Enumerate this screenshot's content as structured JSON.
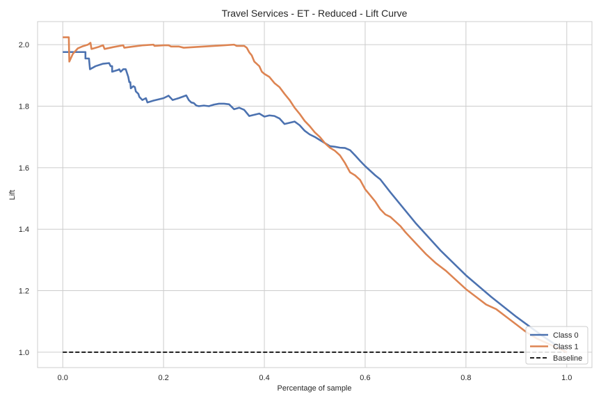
{
  "chart_data": {
    "type": "line",
    "title": "Travel Services - ET - Reduced - Lift Curve",
    "xlabel": "Percentage of sample",
    "ylabel": "Lift",
    "xlim": [
      -0.05,
      1.05
    ],
    "ylim": [
      0.95,
      2.075
    ],
    "xticks": [
      "0.0",
      "0.2",
      "0.4",
      "0.6",
      "0.8",
      "1.0"
    ],
    "yticks": [
      "1.0",
      "1.2",
      "1.4",
      "1.6",
      "1.8",
      "2.0"
    ],
    "grid": true,
    "legend_position": "lower-right",
    "series": [
      {
        "name": "Class 0",
        "color": "#4c72b0",
        "style": "solid",
        "points": [
          [
            0.0,
            1.976
          ],
          [
            0.045,
            1.976
          ],
          [
            0.045,
            1.955
          ],
          [
            0.052,
            1.955
          ],
          [
            0.054,
            1.92
          ],
          [
            0.065,
            1.93
          ],
          [
            0.08,
            1.938
          ],
          [
            0.092,
            1.94
          ],
          [
            0.095,
            1.93
          ],
          [
            0.098,
            1.93
          ],
          [
            0.098,
            1.912
          ],
          [
            0.11,
            1.918
          ],
          [
            0.112,
            1.92
          ],
          [
            0.115,
            1.912
          ],
          [
            0.12,
            1.92
          ],
          [
            0.125,
            1.92
          ],
          [
            0.13,
            1.895
          ],
          [
            0.132,
            1.878
          ],
          [
            0.134,
            1.878
          ],
          [
            0.135,
            1.858
          ],
          [
            0.14,
            1.865
          ],
          [
            0.143,
            1.862
          ],
          [
            0.145,
            1.848
          ],
          [
            0.15,
            1.84
          ],
          [
            0.152,
            1.83
          ],
          [
            0.158,
            1.82
          ],
          [
            0.165,
            1.826
          ],
          [
            0.168,
            1.812
          ],
          [
            0.18,
            1.818
          ],
          [
            0.19,
            1.822
          ],
          [
            0.2,
            1.826
          ],
          [
            0.21,
            1.834
          ],
          [
            0.218,
            1.82
          ],
          [
            0.23,
            1.826
          ],
          [
            0.24,
            1.832
          ],
          [
            0.245,
            1.835
          ],
          [
            0.25,
            1.82
          ],
          [
            0.255,
            1.812
          ],
          [
            0.26,
            1.81
          ],
          [
            0.265,
            1.802
          ],
          [
            0.27,
            1.8
          ],
          [
            0.28,
            1.802
          ],
          [
            0.29,
            1.8
          ],
          [
            0.3,
            1.805
          ],
          [
            0.31,
            1.808
          ],
          [
            0.32,
            1.808
          ],
          [
            0.33,
            1.806
          ],
          [
            0.34,
            1.79
          ],
          [
            0.35,
            1.795
          ],
          [
            0.36,
            1.788
          ],
          [
            0.37,
            1.768
          ],
          [
            0.38,
            1.772
          ],
          [
            0.39,
            1.776
          ],
          [
            0.4,
            1.766
          ],
          [
            0.41,
            1.77
          ],
          [
            0.42,
            1.768
          ],
          [
            0.43,
            1.76
          ],
          [
            0.44,
            1.742
          ],
          [
            0.45,
            1.746
          ],
          [
            0.46,
            1.75
          ],
          [
            0.47,
            1.738
          ],
          [
            0.48,
            1.72
          ],
          [
            0.49,
            1.708
          ],
          [
            0.5,
            1.7
          ],
          [
            0.51,
            1.69
          ],
          [
            0.52,
            1.68
          ],
          [
            0.53,
            1.67
          ],
          [
            0.54,
            1.668
          ],
          [
            0.55,
            1.665
          ],
          [
            0.56,
            1.664
          ],
          [
            0.57,
            1.657
          ],
          [
            0.58,
            1.64
          ],
          [
            0.59,
            1.622
          ],
          [
            0.6,
            1.605
          ],
          [
            0.61,
            1.59
          ],
          [
            0.62,
            1.575
          ],
          [
            0.63,
            1.562
          ],
          [
            0.65,
            1.52
          ],
          [
            0.7,
            1.42
          ],
          [
            0.75,
            1.33
          ],
          [
            0.8,
            1.25
          ],
          [
            0.85,
            1.18
          ],
          [
            0.9,
            1.115
          ],
          [
            0.95,
            1.055
          ],
          [
            1.0,
            1.0
          ]
        ]
      },
      {
        "name": "Class 1",
        "color": "#dd8452",
        "style": "solid",
        "points": [
          [
            0.0,
            2.024
          ],
          [
            0.012,
            2.024
          ],
          [
            0.013,
            1.945
          ],
          [
            0.02,
            1.97
          ],
          [
            0.03,
            1.988
          ],
          [
            0.04,
            1.995
          ],
          [
            0.05,
            2.0
          ],
          [
            0.055,
            2.006
          ],
          [
            0.057,
            1.986
          ],
          [
            0.07,
            1.992
          ],
          [
            0.08,
            1.998
          ],
          [
            0.083,
            1.986
          ],
          [
            0.1,
            1.992
          ],
          [
            0.12,
            1.998
          ],
          [
            0.122,
            1.99
          ],
          [
            0.14,
            1.994
          ],
          [
            0.16,
            1.998
          ],
          [
            0.18,
            2.0
          ],
          [
            0.182,
            1.996
          ],
          [
            0.2,
            1.998
          ],
          [
            0.21,
            1.998
          ],
          [
            0.215,
            1.994
          ],
          [
            0.23,
            1.994
          ],
          [
            0.24,
            1.99
          ],
          [
            0.26,
            1.992
          ],
          [
            0.28,
            1.994
          ],
          [
            0.3,
            1.996
          ],
          [
            0.32,
            1.998
          ],
          [
            0.34,
            2.0
          ],
          [
            0.345,
            1.996
          ],
          [
            0.36,
            1.996
          ],
          [
            0.365,
            1.99
          ],
          [
            0.37,
            1.975
          ],
          [
            0.375,
            1.965
          ],
          [
            0.38,
            1.945
          ],
          [
            0.39,
            1.93
          ],
          [
            0.395,
            1.912
          ],
          [
            0.4,
            1.905
          ],
          [
            0.41,
            1.895
          ],
          [
            0.42,
            1.875
          ],
          [
            0.43,
            1.862
          ],
          [
            0.44,
            1.84
          ],
          [
            0.45,
            1.82
          ],
          [
            0.46,
            1.795
          ],
          [
            0.47,
            1.775
          ],
          [
            0.48,
            1.752
          ],
          [
            0.49,
            1.735
          ],
          [
            0.5,
            1.715
          ],
          [
            0.51,
            1.7
          ],
          [
            0.52,
            1.68
          ],
          [
            0.53,
            1.665
          ],
          [
            0.54,
            1.655
          ],
          [
            0.55,
            1.64
          ],
          [
            0.56,
            1.615
          ],
          [
            0.57,
            1.585
          ],
          [
            0.58,
            1.575
          ],
          [
            0.59,
            1.56
          ],
          [
            0.6,
            1.53
          ],
          [
            0.61,
            1.51
          ],
          [
            0.62,
            1.49
          ],
          [
            0.63,
            1.465
          ],
          [
            0.64,
            1.448
          ],
          [
            0.65,
            1.44
          ],
          [
            0.66,
            1.425
          ],
          [
            0.67,
            1.41
          ],
          [
            0.68,
            1.39
          ],
          [
            0.7,
            1.355
          ],
          [
            0.72,
            1.32
          ],
          [
            0.74,
            1.29
          ],
          [
            0.76,
            1.265
          ],
          [
            0.78,
            1.235
          ],
          [
            0.8,
            1.205
          ],
          [
            0.82,
            1.18
          ],
          [
            0.84,
            1.155
          ],
          [
            0.86,
            1.14
          ],
          [
            0.88,
            1.115
          ],
          [
            0.9,
            1.09
          ],
          [
            0.92,
            1.065
          ],
          [
            0.94,
            1.045
          ],
          [
            0.96,
            1.03
          ],
          [
            0.98,
            1.015
          ],
          [
            1.0,
            1.0
          ]
        ]
      },
      {
        "name": "Baseline",
        "color": "#000000",
        "style": "dashed",
        "points": [
          [
            0.0,
            1.0
          ],
          [
            1.0,
            1.0
          ]
        ]
      }
    ]
  }
}
